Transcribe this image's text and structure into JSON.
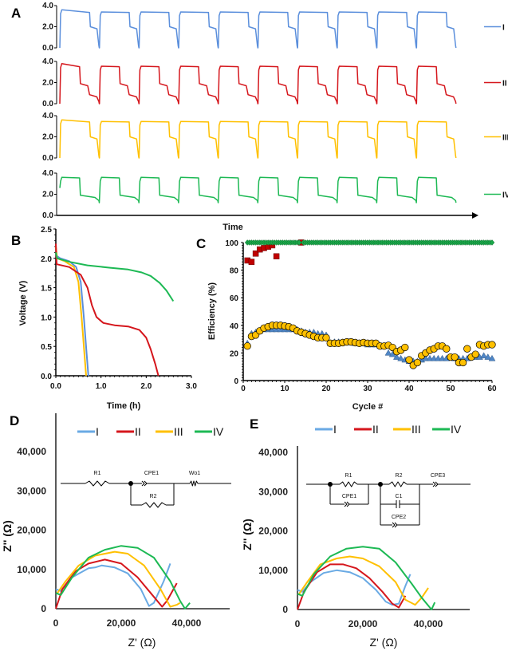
{
  "panel_labels": [
    "A",
    "B",
    "C",
    "D",
    "E"
  ],
  "colors": {
    "I": "#5b8fdc",
    "II": "#d5161c",
    "III": "#ffc000",
    "IV": "#1db954",
    "axis": "#000000"
  },
  "chart_data": [
    {
      "panel": "A",
      "type": "line",
      "xlabel": "Time",
      "ylim": [
        0,
        4
      ],
      "yticks": [
        "0.0",
        "2.0",
        "4.0"
      ],
      "cycles": 10,
      "series": [
        {
          "name": "I",
          "color": "#5b8fdc",
          "charge_V": 3.4,
          "first_charge_V": 3.6,
          "charge_fraction": 0.75,
          "discharge_plateaus_V": [
            2.0
          ],
          "end_V": 0.0
        },
        {
          "name": "II",
          "color": "#d5161c",
          "charge_V": 3.55,
          "first_charge_V": 3.8,
          "charge_fraction": 0.5,
          "discharge_plateaus_V": [
            1.9,
            0.85
          ],
          "end_V": 0.0
        },
        {
          "name": "III",
          "color": "#ffc000",
          "charge_V": 3.45,
          "first_charge_V": 3.6,
          "charge_fraction": 0.75,
          "discharge_plateaus_V": [
            2.0
          ],
          "end_V": 0.0
        },
        {
          "name": "IV",
          "color": "#1db954",
          "charge_V": 3.6,
          "first_charge_V": 3.6,
          "charge_fraction": 0.5,
          "discharge_plateaus_V": [
            1.9
          ],
          "end_V": 1.2
        }
      ]
    },
    {
      "panel": "B",
      "type": "line",
      "xlabel": "Time (h)",
      "ylabel": "Voltage (V)",
      "xlim": [
        0,
        3
      ],
      "ylim": [
        0,
        2.5
      ],
      "xticks": [
        "0.0",
        "1.0",
        "2.0",
        "3.0"
      ],
      "yticks": [
        "0.0",
        "0.5",
        "1.0",
        "1.5",
        "2.0",
        "2.5"
      ],
      "series": [
        {
          "color": "#5b8fdc",
          "points": [
            [
              0,
              2.05
            ],
            [
              0.1,
              2.0
            ],
            [
              0.3,
              1.95
            ],
            [
              0.45,
              1.85
            ],
            [
              0.55,
              1.6
            ],
            [
              0.62,
              1.0
            ],
            [
              0.68,
              0.4
            ],
            [
              0.72,
              0
            ]
          ]
        },
        {
          "color": "#ffc000",
          "points": [
            [
              0,
              2.2
            ],
            [
              0.03,
              2.0
            ],
            [
              0.2,
              1.95
            ],
            [
              0.4,
              1.85
            ],
            [
              0.5,
              1.6
            ],
            [
              0.57,
              1.0
            ],
            [
              0.63,
              0.4
            ],
            [
              0.67,
              0
            ]
          ]
        },
        {
          "color": "#d5161c",
          "points": [
            [
              0,
              2.25
            ],
            [
              0.02,
              1.9
            ],
            [
              0.3,
              1.85
            ],
            [
              0.55,
              1.72
            ],
            [
              0.7,
              1.5
            ],
            [
              0.8,
              1.2
            ],
            [
              0.9,
              1.0
            ],
            [
              1.05,
              0.9
            ],
            [
              1.3,
              0.86
            ],
            [
              1.6,
              0.84
            ],
            [
              1.85,
              0.78
            ],
            [
              2.0,
              0.65
            ],
            [
              2.1,
              0.45
            ],
            [
              2.2,
              0.2
            ],
            [
              2.27,
              0
            ]
          ]
        },
        {
          "color": "#1db954",
          "points": [
            [
              0,
              2.1
            ],
            [
              0.03,
              2.0
            ],
            [
              0.3,
              1.94
            ],
            [
              0.7,
              1.88
            ],
            [
              1.2,
              1.84
            ],
            [
              1.6,
              1.81
            ],
            [
              1.9,
              1.76
            ],
            [
              2.1,
              1.7
            ],
            [
              2.3,
              1.58
            ],
            [
              2.45,
              1.45
            ],
            [
              2.6,
              1.27
            ]
          ]
        }
      ]
    },
    {
      "panel": "C",
      "type": "scatter",
      "xlabel": "Cycle #",
      "ylabel": "Efficiency (%)",
      "xlim": [
        0,
        60
      ],
      "ylim": [
        0,
        100
      ],
      "xticks": [
        "0",
        "10",
        "20",
        "30",
        "40",
        "50",
        "60"
      ],
      "yticks": [
        "0",
        "20",
        "40",
        "60",
        "80",
        "100"
      ],
      "series": [
        {
          "marker": "square",
          "color": "#c00000",
          "x": [
            1,
            2,
            3,
            4,
            5,
            6,
            7,
            8,
            14
          ],
          "y": [
            87,
            86,
            92,
            95,
            96,
            97,
            98,
            90,
            100
          ]
        },
        {
          "marker": "triangle",
          "color": "#4f86c6",
          "x": [
            1,
            2,
            3,
            4,
            5,
            6,
            7,
            8,
            9,
            10,
            11,
            12,
            13,
            14,
            15,
            16,
            17,
            18,
            19,
            20,
            21,
            22,
            23,
            24,
            25,
            26,
            27,
            28,
            29,
            30,
            31,
            32,
            33,
            34,
            35,
            36,
            37,
            38,
            39,
            40,
            41,
            42,
            43,
            44,
            45,
            46,
            47,
            48,
            49,
            50,
            51,
            52,
            53,
            54,
            55,
            56,
            57,
            58,
            59,
            60
          ],
          "y": [
            27,
            34,
            35,
            36,
            37,
            37,
            37,
            37,
            37,
            37,
            37,
            37,
            37,
            36,
            35,
            35,
            35,
            34,
            34,
            33,
            27,
            28,
            28,
            28,
            28,
            28,
            27,
            27,
            27,
            26,
            26,
            26,
            25,
            25,
            20,
            19,
            17,
            16,
            15,
            14,
            14,
            14,
            15,
            16,
            16,
            16,
            16,
            16,
            16,
            17,
            16,
            16,
            16,
            16,
            17,
            17,
            17,
            18,
            17,
            16
          ]
        },
        {
          "marker": "circle",
          "color": "#ffc000",
          "x": [
            1,
            2,
            3,
            4,
            5,
            6,
            7,
            8,
            9,
            10,
            11,
            12,
            13,
            14,
            15,
            16,
            17,
            18,
            19,
            20,
            21,
            22,
            23,
            24,
            25,
            26,
            27,
            28,
            29,
            30,
            31,
            32,
            33,
            34,
            35,
            36,
            37,
            38,
            39,
            40,
            41,
            42,
            43,
            44,
            45,
            46,
            47,
            48,
            49,
            50,
            51,
            52,
            53,
            54,
            55,
            56,
            57,
            58,
            59,
            60
          ],
          "y": [
            25,
            32,
            33,
            36,
            38,
            39,
            40,
            40,
            40,
            39.5,
            39,
            38,
            36,
            35,
            34,
            33,
            32,
            31,
            31,
            31,
            27,
            27,
            27,
            27.5,
            28,
            28,
            27.5,
            27,
            27.5,
            27,
            27,
            27,
            25,
            25,
            25.5,
            24,
            21,
            22,
            24,
            15,
            11,
            13,
            18,
            20,
            22,
            23,
            25,
            25,
            23,
            17,
            17,
            13,
            13,
            23,
            17,
            19,
            26,
            25,
            26,
            26
          ]
        },
        {
          "marker": "diamond",
          "color": "#1aa84a",
          "x_range": [
            1,
            60
          ],
          "y": 100
        }
      ]
    },
    {
      "panel": "D",
      "type": "line",
      "xlabel": "Z' (Ω)",
      "ylabel": "Z'' (Ω)",
      "xlim": [
        0,
        50000
      ],
      "ylim": [
        0,
        40000
      ],
      "xticks": [
        "0",
        "20,000",
        "40,000"
      ],
      "yticks": [
        "0",
        "10,000",
        "20,000",
        "30,000",
        "40,000"
      ],
      "circuit": {
        "labels": [
          "R1",
          "CPE1",
          "R2",
          "Wo1"
        ]
      },
      "series": [
        {
          "name": "I",
          "color": "#6aaae4",
          "points": [
            [
              0,
              5000
            ],
            [
              1500,
              4500
            ],
            [
              5000,
              8000
            ],
            [
              10000,
              10300
            ],
            [
              12000,
              10500
            ],
            [
              14000,
              11000
            ],
            [
              18000,
              10500
            ],
            [
              22000,
              9000
            ],
            [
              26000,
              5000
            ],
            [
              28500,
              700
            ],
            [
              30000,
              1500
            ],
            [
              33000,
              7000
            ],
            [
              35000,
              11500
            ]
          ]
        },
        {
          "name": "II",
          "color": "#d5161c",
          "points": [
            [
              0,
              0
            ],
            [
              2000,
              5000
            ],
            [
              6000,
              9500
            ],
            [
              10000,
              11500
            ],
            [
              15000,
              12500
            ],
            [
              20000,
              11500
            ],
            [
              25000,
              8000
            ],
            [
              30000,
              3000
            ],
            [
              32500,
              500
            ],
            [
              34000,
              2000
            ],
            [
              36000,
              5000
            ],
            [
              37000,
              6500
            ]
          ]
        },
        {
          "name": "III",
          "color": "#ffc000",
          "points": [
            [
              500,
              4000
            ],
            [
              3000,
              7000
            ],
            [
              7000,
              11000
            ],
            [
              12000,
              13500
            ],
            [
              18000,
              14500
            ],
            [
              22000,
              14000
            ],
            [
              27000,
              11000
            ],
            [
              32000,
              5000
            ],
            [
              35000,
              500
            ],
            [
              37000,
              1000
            ],
            [
              38000,
              1500
            ]
          ]
        },
        {
          "name": "IV",
          "color": "#1db954",
          "points": [
            [
              0,
              4000
            ],
            [
              1500,
              3500
            ],
            [
              5000,
              8000
            ],
            [
              10000,
              13000
            ],
            [
              15000,
              15000
            ],
            [
              20000,
              16000
            ],
            [
              25000,
              15500
            ],
            [
              30000,
              13000
            ],
            [
              35000,
              7000
            ],
            [
              38000,
              2000
            ],
            [
              39500,
              0
            ],
            [
              41000,
              1500
            ]
          ]
        }
      ]
    },
    {
      "panel": "E",
      "type": "line",
      "xlabel": "Z' (Ω)",
      "ylabel": "Z'' (Ω)",
      "xlim": [
        0,
        50000
      ],
      "ylim": [
        0,
        40000
      ],
      "xticks": [
        "0",
        "20,000",
        "40,000"
      ],
      "yticks": [
        "0",
        "10,000",
        "20,000",
        "30,000",
        "40,000"
      ],
      "circuit": {
        "labels": [
          "R1",
          "CPE1",
          "R2",
          "C1",
          "CPE2",
          "CPE3"
        ]
      },
      "series": [
        {
          "name": "I",
          "color": "#6aaae4",
          "points": [
            [
              0,
              5000
            ],
            [
              1500,
              4500
            ],
            [
              4000,
              7000
            ],
            [
              8000,
              9300
            ],
            [
              12000,
              10000
            ],
            [
              16000,
              9500
            ],
            [
              20000,
              8000
            ],
            [
              24000,
              5000
            ],
            [
              27000,
              2000
            ],
            [
              29000,
              1200
            ],
            [
              31000,
              1500
            ],
            [
              33000,
              6000
            ],
            [
              34500,
              9000
            ]
          ]
        },
        {
          "name": "II",
          "color": "#d5161c",
          "points": [
            [
              0,
              0
            ],
            [
              2000,
              4500
            ],
            [
              6000,
              9500
            ],
            [
              10000,
              11500
            ],
            [
              14000,
              11500
            ],
            [
              18000,
              10500
            ],
            [
              22000,
              8000
            ],
            [
              26000,
              4500
            ],
            [
              29000,
              1500
            ],
            [
              31000,
              500
            ],
            [
              33000,
              3500
            ]
          ]
        },
        {
          "name": "III",
          "color": "#ffc000",
          "points": [
            [
              500,
              4000
            ],
            [
              3000,
              7000
            ],
            [
              7000,
              11500
            ],
            [
              12000,
              13000
            ],
            [
              16000,
              13500
            ],
            [
              20000,
              13000
            ],
            [
              25000,
              11000
            ],
            [
              30000,
              7000
            ],
            [
              33000,
              2500
            ],
            [
              36000,
              1200
            ],
            [
              38000,
              3000
            ],
            [
              40000,
              5500
            ]
          ]
        },
        {
          "name": "IV",
          "color": "#1db954",
          "points": [
            [
              0,
              4000
            ],
            [
              1500,
              3500
            ],
            [
              5000,
              9000
            ],
            [
              10000,
              13500
            ],
            [
              15000,
              15500
            ],
            [
              20000,
              16000
            ],
            [
              25000,
              15500
            ],
            [
              30000,
              12000
            ],
            [
              35000,
              6500
            ],
            [
              38000,
              3000
            ],
            [
              41000,
              0
            ],
            [
              42000,
              1800
            ]
          ]
        }
      ]
    }
  ]
}
